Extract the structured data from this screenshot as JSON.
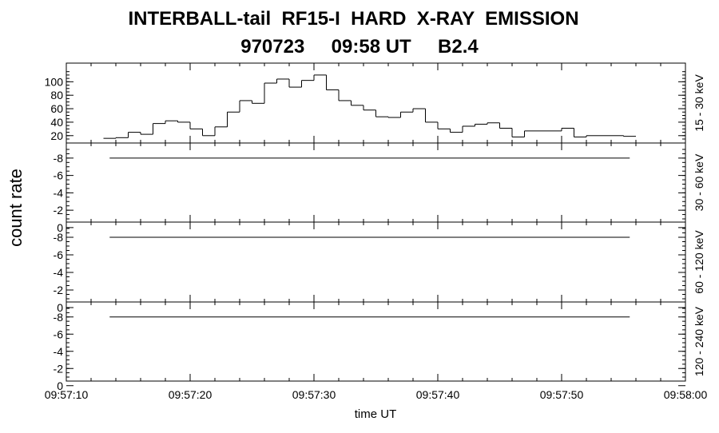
{
  "title": {
    "line1": "INTERBALL-tail  RF15-I  HARD  X-RAY  EMISSION",
    "line2": "970723     09:58 UT     B2.4"
  },
  "ylabel": "count rate",
  "xlabel": "time UT",
  "x_ticks": [
    "09:57:10",
    "09:57:20",
    "09:57:30",
    "09:57:40",
    "09:57:50",
    "09:58:00"
  ],
  "chart_data": [
    {
      "type": "line",
      "step": true,
      "panel_label": "15 - 30 keV",
      "xlim": [
        "09:57:10",
        "09:58:00"
      ],
      "ylim": [
        15,
        117
      ],
      "y_ticks": [
        20,
        40,
        60,
        80,
        100
      ],
      "x": [
        "09:57:13.5",
        "09:57:14.5",
        "09:57:15.5",
        "09:57:16.5",
        "09:57:17.5",
        "09:57:18.5",
        "09:57:19.5",
        "09:57:20.5",
        "09:57:21.5",
        "09:57:22.5",
        "09:57:23.5",
        "09:57:24.5",
        "09:57:25.5",
        "09:57:26.5",
        "09:57:27.5",
        "09:57:28.5",
        "09:57:29.5",
        "09:57:30.5",
        "09:57:31.5",
        "09:57:32.5",
        "09:57:33.5",
        "09:57:34.5",
        "09:57:35.5",
        "09:57:36.5",
        "09:57:37.5",
        "09:57:38.5",
        "09:57:39.5",
        "09:57:40.5",
        "09:57:41.5",
        "09:57:42.5",
        "09:57:43.5",
        "09:57:44.5",
        "09:57:45.5",
        "09:57:46.5",
        "09:57:47.5",
        "09:57:48.5",
        "09:57:49.5",
        "09:57:50.5",
        "09:57:51.5",
        "09:57:52.5",
        "09:57:53.5",
        "09:57:54.5",
        "09:57:55.5"
      ],
      "values": [
        16,
        17,
        25,
        22,
        38,
        42,
        40,
        30,
        20,
        33,
        55,
        72,
        68,
        98,
        104,
        92,
        102,
        110,
        88,
        72,
        65,
        58,
        48,
        47,
        55,
        60,
        40,
        30,
        25,
        34,
        37,
        39,
        31,
        18,
        27,
        27,
        27,
        31,
        18,
        20,
        20,
        20,
        19
      ]
    },
    {
      "type": "line",
      "panel_label": "30 - 60 keV",
      "xlim": [
        "09:57:10",
        "09:58:00"
      ],
      "ylim": [
        -1,
        -9
      ],
      "y_ticks": [
        -8,
        -6,
        -4,
        -2,
        0
      ],
      "x": [
        "09:57:13.5",
        "09:57:55.5"
      ],
      "values": [
        -8,
        -8
      ]
    },
    {
      "type": "line",
      "panel_label": "60 - 120 keV",
      "xlim": [
        "09:57:10",
        "09:58:00"
      ],
      "ylim": [
        -1,
        -9
      ],
      "y_ticks": [
        -8,
        -6,
        -4,
        -2,
        0
      ],
      "x": [
        "09:57:13.5",
        "09:57:55.5"
      ],
      "values": [
        -8,
        -8
      ]
    },
    {
      "type": "line",
      "panel_label": "120 - 240 keV",
      "xlim": [
        "09:57:10",
        "09:58:00"
      ],
      "ylim": [
        -1,
        -9
      ],
      "y_ticks": [
        -8,
        -6,
        -4,
        -2,
        0
      ],
      "x": [
        "09:57:13.5",
        "09:57:55.5"
      ],
      "values": [
        -8,
        -8
      ]
    }
  ]
}
